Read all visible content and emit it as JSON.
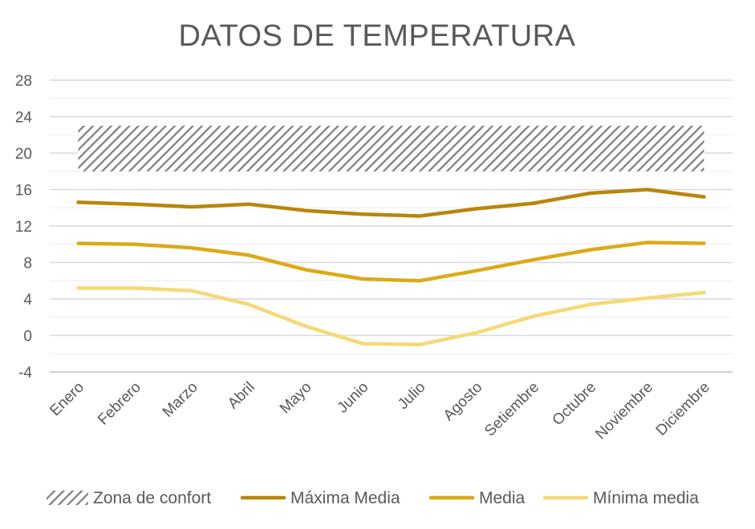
{
  "chart_data": {
    "type": "line",
    "title": "DATOS DE TEMPERATURA",
    "xlabel": "",
    "ylabel": "",
    "ylim": [
      -4,
      28
    ],
    "yticks": [
      "28",
      "24",
      "20",
      "16",
      "12",
      "8",
      "4",
      "0",
      "-4"
    ],
    "ytick_values": [
      28,
      24,
      20,
      16,
      12,
      8,
      4,
      0,
      -4
    ],
    "minor_grid_values": [
      26,
      22,
      18,
      14,
      10,
      6,
      2,
      -2
    ],
    "categories": [
      "Enero",
      "Febrero",
      "Marzo",
      "Abril",
      "Mayo",
      "Junio",
      "Julio",
      "Agosto",
      "Setiembre",
      "Octubre",
      "Noviembre",
      "Diciembre"
    ],
    "grid": true,
    "legend_position": "bottom",
    "band": {
      "name": "Zona de confort",
      "from": 18,
      "to": 23,
      "color": "#7f7f7f",
      "pattern": "hatched"
    },
    "series": [
      {
        "name": "Máxima Media",
        "color": "#b8860b",
        "values": [
          14.6,
          14.4,
          14.1,
          14.4,
          13.7,
          13.3,
          13.1,
          13.9,
          14.5,
          15.6,
          16.0,
          15.2
        ]
      },
      {
        "name": "Media",
        "color": "#dcaa16",
        "values": [
          10.1,
          10.0,
          9.6,
          8.8,
          7.2,
          6.2,
          6.0,
          7.1,
          8.3,
          9.4,
          10.2,
          10.1
        ]
      },
      {
        "name": "Mínima media",
        "color": "#f6d976",
        "values": [
          5.2,
          5.2,
          4.9,
          3.4,
          1.0,
          -0.9,
          -1.0,
          0.3,
          2.1,
          3.4,
          4.1,
          4.7
        ]
      }
    ]
  }
}
